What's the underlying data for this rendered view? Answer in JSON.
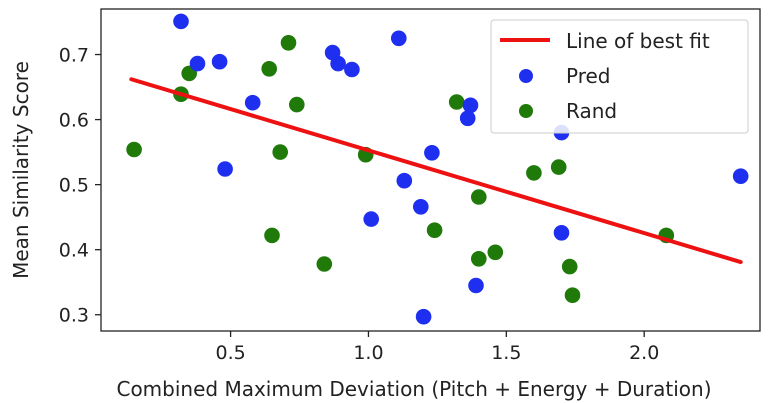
{
  "chart_data": {
    "type": "scatter",
    "xlabel": "Combined Maximum Deviation (Pitch + Energy + Duration)",
    "ylabel": "Mean Similarity Score",
    "xlim": [
      0.03,
      2.42
    ],
    "ylim": [
      0.275,
      0.77
    ],
    "x_ticks": [
      {
        "value": 0.5,
        "label": "0.5"
      },
      {
        "value": 1.0,
        "label": "1.0"
      },
      {
        "value": 1.5,
        "label": "1.5"
      },
      {
        "value": 2.0,
        "label": "2.0"
      }
    ],
    "y_ticks": [
      {
        "value": 0.3,
        "label": "0.3"
      },
      {
        "value": 0.4,
        "label": "0.4"
      },
      {
        "value": 0.5,
        "label": "0.5"
      },
      {
        "value": 0.6,
        "label": "0.6"
      },
      {
        "value": 0.7,
        "label": "0.7"
      }
    ],
    "grid": false,
    "legend_position": "top-right",
    "fit_line": {
      "name": "Line of best fit",
      "color": "#ee1111",
      "points": [
        {
          "x": 0.14,
          "y": 0.662
        },
        {
          "x": 2.35,
          "y": 0.381
        }
      ]
    },
    "series": [
      {
        "name": "Pred",
        "color": "#1f2ff0",
        "points": [
          {
            "x": 0.32,
            "y": 0.751
          },
          {
            "x": 0.38,
            "y": 0.686
          },
          {
            "x": 0.46,
            "y": 0.689
          },
          {
            "x": 0.48,
            "y": 0.524
          },
          {
            "x": 0.58,
            "y": 0.626
          },
          {
            "x": 0.87,
            "y": 0.703
          },
          {
            "x": 0.89,
            "y": 0.686
          },
          {
            "x": 0.94,
            "y": 0.677
          },
          {
            "x": 1.01,
            "y": 0.447
          },
          {
            "x": 1.11,
            "y": 0.725
          },
          {
            "x": 1.13,
            "y": 0.506
          },
          {
            "x": 1.19,
            "y": 0.466
          },
          {
            "x": 1.2,
            "y": 0.297
          },
          {
            "x": 1.23,
            "y": 0.549
          },
          {
            "x": 1.36,
            "y": 0.602
          },
          {
            "x": 1.37,
            "y": 0.622
          },
          {
            "x": 1.39,
            "y": 0.345
          },
          {
            "x": 1.7,
            "y": 0.58
          },
          {
            "x": 1.7,
            "y": 0.426
          },
          {
            "x": 2.35,
            "y": 0.513
          }
        ]
      },
      {
        "name": "Rand",
        "color": "#1f7a0a",
        "points": [
          {
            "x": 0.15,
            "y": 0.554
          },
          {
            "x": 0.32,
            "y": 0.639
          },
          {
            "x": 0.35,
            "y": 0.671
          },
          {
            "x": 0.64,
            "y": 0.678
          },
          {
            "x": 0.65,
            "y": 0.422
          },
          {
            "x": 0.68,
            "y": 0.55
          },
          {
            "x": 0.71,
            "y": 0.718
          },
          {
            "x": 0.74,
            "y": 0.623
          },
          {
            "x": 0.84,
            "y": 0.378
          },
          {
            "x": 0.99,
            "y": 0.546
          },
          {
            "x": 1.24,
            "y": 0.43
          },
          {
            "x": 1.32,
            "y": 0.627
          },
          {
            "x": 1.4,
            "y": 0.481
          },
          {
            "x": 1.4,
            "y": 0.386
          },
          {
            "x": 1.46,
            "y": 0.396
          },
          {
            "x": 1.6,
            "y": 0.518
          },
          {
            "x": 1.69,
            "y": 0.527
          },
          {
            "x": 1.73,
            "y": 0.374
          },
          {
            "x": 1.74,
            "y": 0.33
          },
          {
            "x": 2.08,
            "y": 0.422
          }
        ]
      }
    ]
  }
}
